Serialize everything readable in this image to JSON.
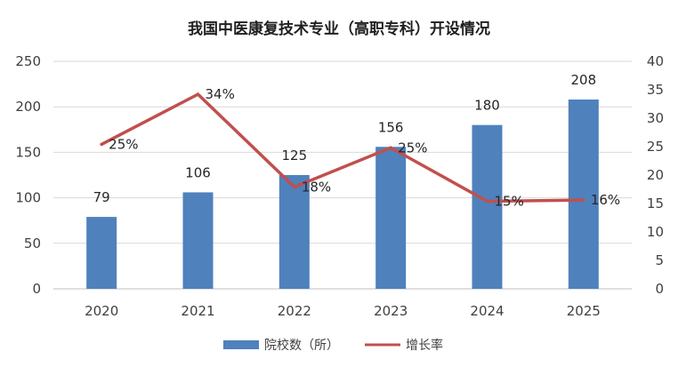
{
  "chart_data": {
    "type": "bar",
    "title": "我国中医康复技术专业（高职专科）开设情况",
    "categories": [
      "2020",
      "2021",
      "2022",
      "2023",
      "2024",
      "2025"
    ],
    "series": [
      {
        "name": "院校数（所）",
        "kind": "bar",
        "axis": "left",
        "color": "#4f81bd",
        "values": [
          79,
          106,
          125,
          156,
          180,
          208
        ],
        "labels": [
          "79",
          "106",
          "125",
          "156",
          "180",
          "208"
        ]
      },
      {
        "name": "增长率",
        "kind": "line",
        "axis": "right",
        "color": "#c0504d",
        "values": [
          25.4,
          34.2,
          17.9,
          24.8,
          15.4,
          15.6
        ],
        "labels": [
          "25%",
          "34%",
          "18%",
          "25%",
          "15%",
          "16%"
        ]
      }
    ],
    "left_axis": {
      "min": 0,
      "max": 250,
      "ticks": [
        0,
        50,
        100,
        150,
        200,
        250
      ]
    },
    "right_axis": {
      "min": 0,
      "max": 40,
      "ticks": [
        0,
        5,
        10,
        15,
        20,
        25,
        30,
        35,
        40
      ]
    },
    "grid": true,
    "legend": "bottom"
  }
}
